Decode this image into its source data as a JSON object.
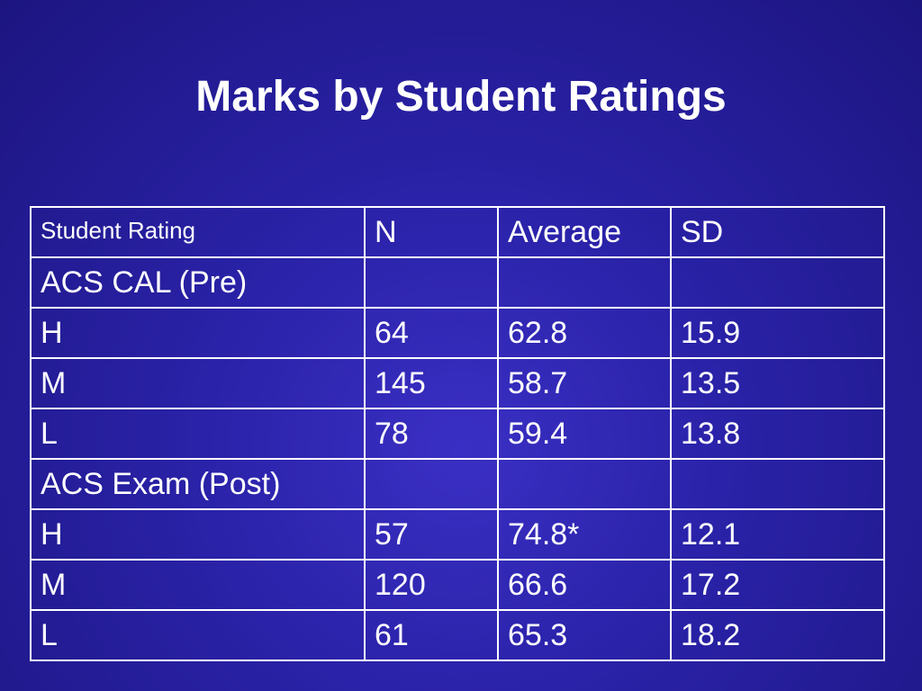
{
  "title": "Marks by Student Ratings",
  "table": {
    "headers": [
      "Student Rating",
      "N",
      "Average",
      "SD"
    ],
    "rows": [
      [
        "ACS CAL (Pre)",
        "",
        "",
        ""
      ],
      [
        "H",
        "64",
        "62.8",
        "15.9"
      ],
      [
        "M",
        "145",
        "58.7",
        "13.5"
      ],
      [
        "L",
        "78",
        "59.4",
        "13.8"
      ],
      [
        "ACS Exam (Post)",
        "",
        "",
        ""
      ],
      [
        "H",
        "57",
        "74.8*",
        "12.1"
      ],
      [
        "M",
        "120",
        "66.6",
        "17.2"
      ],
      [
        "L",
        "61",
        "65.3",
        "18.2"
      ]
    ]
  }
}
